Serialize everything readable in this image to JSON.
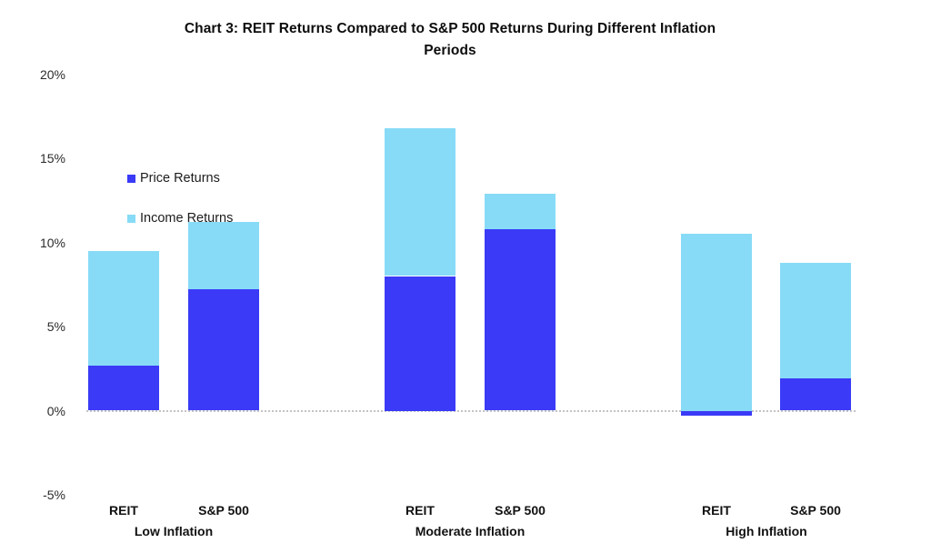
{
  "header": {
    "title_lines": [
      "Chart 3: REIT Returns Compared to S&P 500 Returns During Different Inflation",
      "Periods"
    ]
  },
  "chart_data": {
    "type": "bar",
    "stacked": true,
    "title": "Chart 3: REIT Returns Compared to S&P 500 Returns During Different Inflation Periods",
    "groups": [
      "Low Inflation",
      "Moderate Inflation",
      "High Inflation"
    ],
    "categories": [
      "REIT",
      "S&P 500",
      "REIT",
      "S&P 500",
      "REIT",
      "S&P 500"
    ],
    "series": [
      {
        "name": "Price Returns",
        "color": "#3a3af7",
        "values": [
          2.7,
          7.2,
          8.0,
          10.8,
          -0.3,
          1.9
        ]
      },
      {
        "name": "Income Returns",
        "color": "#87dbf7",
        "values": [
          6.8,
          4.0,
          8.8,
          2.1,
          10.5,
          6.9
        ]
      }
    ],
    "ylim": [
      -5,
      20
    ],
    "ytick_labels": [
      "20%",
      "15%",
      "10%",
      "5%",
      "0%",
      "-5%"
    ],
    "grid": false,
    "legend_position": "inside-upper-left",
    "axis_line_color": "#c3c3c8"
  }
}
